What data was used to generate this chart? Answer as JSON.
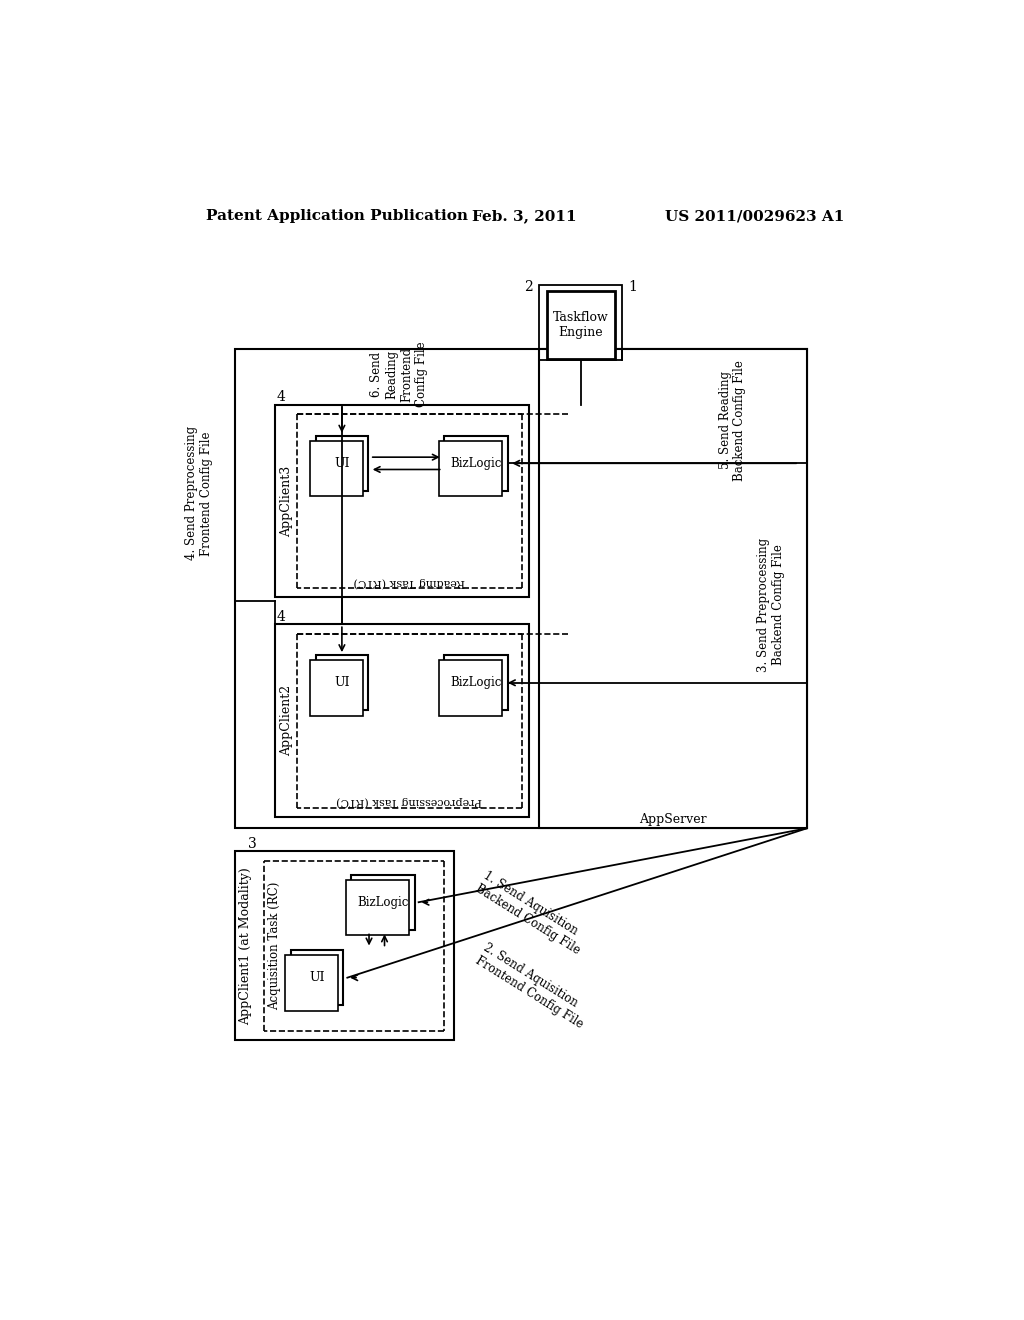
{
  "bg_color": "#ffffff",
  "header_left": "Patent Application Publication",
  "header_center": "Feb. 3, 2011",
  "header_right": "US 2011/0029623 A1"
}
